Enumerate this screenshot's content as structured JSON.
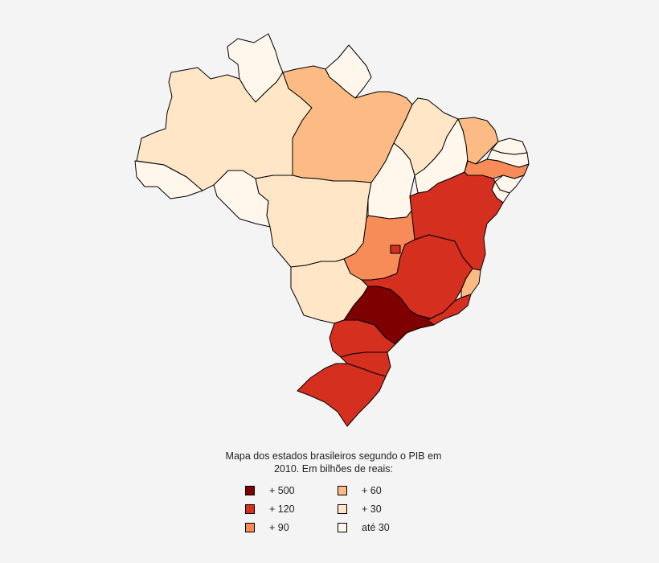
{
  "caption_line1": "Mapa dos estados brasileiros segundo o PIB em",
  "caption_line2": "2010. Em bilhões de reais:",
  "legend": [
    {
      "label": "+ 500",
      "color": "#7f0000"
    },
    {
      "label": "+ 60",
      "color": "#fcbb84"
    },
    {
      "label": "+ 120",
      "color": "#d42f1f"
    },
    {
      "label": "+ 30",
      "color": "#fee6c6"
    },
    {
      "label": "+ 90",
      "color": "#f78c58"
    },
    {
      "label": "até 30",
      "color": "#fff6ec"
    }
  ],
  "states": [
    {
      "id": "RR",
      "class": "até 30"
    },
    {
      "id": "AP",
      "class": "até 30"
    },
    {
      "id": "AM",
      "class": "+ 30"
    },
    {
      "id": "PA",
      "class": "+ 60"
    },
    {
      "id": "AC",
      "class": "até 30"
    },
    {
      "id": "RO",
      "class": "até 30"
    },
    {
      "id": "MT",
      "class": "+ 30"
    },
    {
      "id": "MA",
      "class": "+ 30"
    },
    {
      "id": "TO",
      "class": "até 30"
    },
    {
      "id": "PI",
      "class": "até 30"
    },
    {
      "id": "CE",
      "class": "+ 60"
    },
    {
      "id": "RN",
      "class": "até 30"
    },
    {
      "id": "PB",
      "class": "até 30"
    },
    {
      "id": "PE",
      "class": "+ 90"
    },
    {
      "id": "AL",
      "class": "até 30"
    },
    {
      "id": "SE",
      "class": "até 30"
    },
    {
      "id": "BA",
      "class": "+ 120"
    },
    {
      "id": "GO",
      "class": "+ 90"
    },
    {
      "id": "DF",
      "class": "+ 120"
    },
    {
      "id": "MS",
      "class": "+ 30"
    },
    {
      "id": "MG",
      "class": "+ 120"
    },
    {
      "id": "ES",
      "class": "+ 60"
    },
    {
      "id": "RJ",
      "class": "+ 120"
    },
    {
      "id": "SP",
      "class": "+ 500"
    },
    {
      "id": "PR",
      "class": "+ 120"
    },
    {
      "id": "SC",
      "class": "+ 120"
    },
    {
      "id": "RS",
      "class": "+ 120"
    }
  ]
}
